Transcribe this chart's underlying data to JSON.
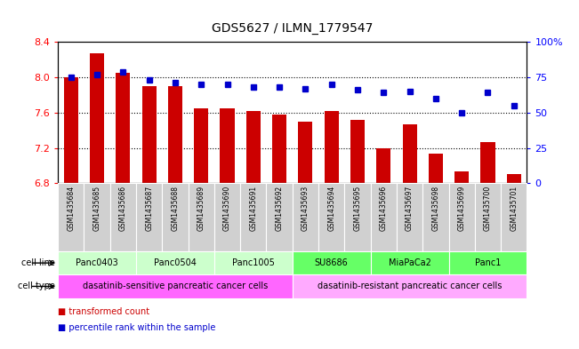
{
  "title": "GDS5627 / ILMN_1779547",
  "samples": [
    "GSM1435684",
    "GSM1435685",
    "GSM1435686",
    "GSM1435687",
    "GSM1435688",
    "GSM1435689",
    "GSM1435690",
    "GSM1435691",
    "GSM1435692",
    "GSM1435693",
    "GSM1435694",
    "GSM1435695",
    "GSM1435696",
    "GSM1435697",
    "GSM1435698",
    "GSM1435699",
    "GSM1435700",
    "GSM1435701"
  ],
  "bar_values": [
    8.0,
    8.27,
    8.05,
    7.9,
    7.9,
    7.65,
    7.65,
    7.62,
    7.58,
    7.5,
    7.62,
    7.52,
    7.2,
    7.47,
    7.14,
    6.93,
    7.27,
    6.9
  ],
  "percentile_values": [
    75,
    77,
    79,
    73,
    71,
    70,
    70,
    68,
    68,
    67,
    70,
    66,
    64,
    65,
    60,
    50,
    64,
    55
  ],
  "ylim_left": [
    6.8,
    8.4
  ],
  "ylim_right": [
    0,
    100
  ],
  "yticks_left": [
    6.8,
    7.2,
    7.6,
    8.0,
    8.4
  ],
  "yticks_right": [
    0,
    25,
    50,
    75,
    100
  ],
  "bar_color": "#cc0000",
  "dot_color": "#0000cc",
  "cell_lines": [
    {
      "label": "Panc0403",
      "start": 0,
      "end": 2,
      "color": "#ccffcc"
    },
    {
      "label": "Panc0504",
      "start": 3,
      "end": 5,
      "color": "#ccffcc"
    },
    {
      "label": "Panc1005",
      "start": 6,
      "end": 8,
      "color": "#ccffcc"
    },
    {
      "label": "SU8686",
      "start": 9,
      "end": 11,
      "color": "#66ff66"
    },
    {
      "label": "MiaPaCa2",
      "start": 12,
      "end": 14,
      "color": "#66ff66"
    },
    {
      "label": "Panc1",
      "start": 15,
      "end": 17,
      "color": "#66ff66"
    }
  ],
  "cell_types": [
    {
      "label": "dasatinib-sensitive pancreatic cancer cells",
      "start": 0,
      "end": 8,
      "color": "#ff66ff"
    },
    {
      "label": "dasatinib-resistant pancreatic cancer cells",
      "start": 9,
      "end": 17,
      "color": "#ffaaff"
    }
  ],
  "tick_bg_color": "#d0d0d0",
  "legend_items": [
    {
      "color": "#cc0000",
      "label": "transformed count"
    },
    {
      "color": "#0000cc",
      "label": "percentile rank within the sample"
    }
  ]
}
